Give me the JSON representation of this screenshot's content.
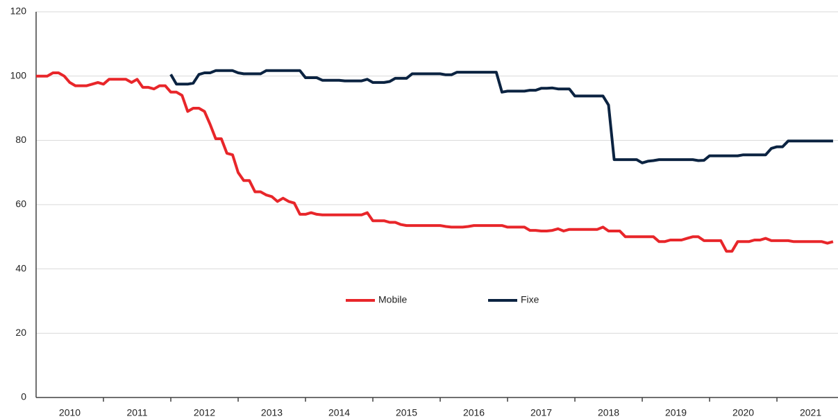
{
  "chart_data": {
    "type": "line",
    "x": [
      2010,
      2010.083,
      2010.167,
      2010.25,
      2010.333,
      2010.417,
      2010.5,
      2010.583,
      2010.667,
      2010.75,
      2010.833,
      2010.917,
      2011,
      2011.083,
      2011.167,
      2011.25,
      2011.333,
      2011.417,
      2011.5,
      2011.583,
      2011.667,
      2011.75,
      2011.833,
      2011.917,
      2012,
      2012.083,
      2012.167,
      2012.25,
      2012.333,
      2012.417,
      2012.5,
      2012.583,
      2012.667,
      2012.75,
      2012.833,
      2012.917,
      2013,
      2013.083,
      2013.167,
      2013.25,
      2013.333,
      2013.417,
      2013.5,
      2013.583,
      2013.667,
      2013.75,
      2013.833,
      2013.917,
      2014,
      2014.083,
      2014.167,
      2014.25,
      2014.333,
      2014.417,
      2014.5,
      2014.583,
      2014.667,
      2014.75,
      2014.833,
      2014.917,
      2015,
      2015.083,
      2015.167,
      2015.25,
      2015.333,
      2015.417,
      2015.5,
      2015.583,
      2015.667,
      2015.75,
      2015.833,
      2015.917,
      2016,
      2016.083,
      2016.167,
      2016.25,
      2016.333,
      2016.417,
      2016.5,
      2016.583,
      2016.667,
      2016.75,
      2016.833,
      2016.917,
      2017,
      2017.083,
      2017.167,
      2017.25,
      2017.333,
      2017.417,
      2017.5,
      2017.583,
      2017.667,
      2017.75,
      2017.833,
      2017.917,
      2018,
      2018.083,
      2018.167,
      2018.25,
      2018.333,
      2018.417,
      2018.5,
      2018.583,
      2018.667,
      2018.75,
      2018.833,
      2018.917,
      2019,
      2019.083,
      2019.167,
      2019.25,
      2019.333,
      2019.417,
      2019.5,
      2019.583,
      2019.667,
      2019.75,
      2019.833,
      2019.917,
      2020,
      2020.083,
      2020.167,
      2020.25,
      2020.333,
      2020.417,
      2020.5,
      2020.583,
      2020.667,
      2020.75,
      2020.833,
      2020.917,
      2021,
      2021.083,
      2021.167,
      2021.25,
      2021.333,
      2021.417,
      2021.5,
      2021.583,
      2021.667,
      2021.75,
      2021.833
    ],
    "series": [
      {
        "name": "Mobile",
        "color": "#e8262a",
        "values": [
          100,
          100,
          100,
          101,
          101,
          100,
          98,
          97,
          97,
          97,
          97.5,
          98,
          97.5,
          99,
          99,
          99,
          99,
          98,
          99,
          96.5,
          96.5,
          96,
          97,
          97,
          95,
          95,
          94,
          89,
          90,
          90,
          89,
          85,
          80.5,
          80.5,
          76,
          75.5,
          70,
          67.5,
          67.5,
          64,
          64,
          63,
          62.5,
          61,
          62,
          61,
          60.5,
          57,
          57,
          57.5,
          57,
          56.8,
          56.8,
          56.8,
          56.8,
          56.8,
          56.8,
          56.8,
          56.8,
          57.5,
          55,
          55,
          55,
          54.5,
          54.5,
          53.8,
          53.5,
          53.5,
          53.5,
          53.5,
          53.5,
          53.5,
          53.5,
          53.2,
          53,
          53,
          53,
          53.2,
          53.5,
          53.5,
          53.5,
          53.5,
          53.5,
          53.5,
          53,
          53,
          53,
          53,
          52,
          52,
          51.8,
          51.8,
          52,
          52.5,
          51.8,
          52.3,
          52.3,
          52.3,
          52.3,
          52.3,
          52.3,
          53,
          51.8,
          51.8,
          51.8,
          50,
          50,
          50,
          50,
          50,
          50,
          48.5,
          48.5,
          49,
          49,
          49,
          49.5,
          50,
          50,
          48.8,
          48.8,
          48.8,
          48.8,
          45.5,
          45.5,
          48.5,
          48.5,
          48.5,
          49,
          49,
          49.5,
          48.8,
          48.8,
          48.8,
          48.8,
          48.5,
          48.5,
          48.5,
          48.5,
          48.5,
          48.5,
          48,
          48.5
        ]
      },
      {
        "name": "Fixe",
        "color": "#0b2341",
        "values": [
          null,
          null,
          null,
          null,
          null,
          null,
          null,
          null,
          null,
          null,
          null,
          null,
          null,
          null,
          null,
          null,
          null,
          null,
          null,
          null,
          null,
          null,
          null,
          null,
          100.5,
          97.5,
          97.5,
          97.5,
          97.8,
          100.5,
          101,
          101,
          101.7,
          101.7,
          101.7,
          101.7,
          101,
          100.7,
          100.7,
          100.7,
          100.7,
          101.7,
          101.7,
          101.7,
          101.7,
          101.7,
          101.7,
          101.7,
          99.5,
          99.5,
          99.5,
          98.7,
          98.7,
          98.7,
          98.7,
          98.5,
          98.5,
          98.5,
          98.5,
          99,
          98,
          98,
          98,
          98.3,
          99.3,
          99.3,
          99.3,
          100.7,
          100.7,
          100.7,
          100.7,
          100.7,
          100.7,
          100.4,
          100.4,
          101.2,
          101.2,
          101.2,
          101.2,
          101.2,
          101.2,
          101.2,
          101.2,
          95,
          95.3,
          95.3,
          95.3,
          95.3,
          95.6,
          95.6,
          96.2,
          96.2,
          96.3,
          96,
          96,
          96,
          93.8,
          93.8,
          93.8,
          93.8,
          93.8,
          93.8,
          91,
          74,
          74,
          74,
          74,
          74,
          73,
          73.5,
          73.7,
          74,
          74,
          74,
          74,
          74,
          74,
          74,
          73.7,
          73.8,
          75.2,
          75.2,
          75.2,
          75.2,
          75.2,
          75.2,
          75.5,
          75.5,
          75.5,
          75.5,
          75.5,
          77.5,
          78,
          78,
          79.8,
          79.8,
          79.8,
          79.8,
          79.8,
          79.8,
          79.8,
          79.8,
          79.8
        ]
      }
    ],
    "xlim": [
      2010,
      2021.917
    ],
    "xticks": [
      {
        "value": 2010.5,
        "label": "2010"
      },
      {
        "value": 2011.5,
        "label": "2011"
      },
      {
        "value": 2012.5,
        "label": "2012"
      },
      {
        "value": 2013.5,
        "label": "2013"
      },
      {
        "value": 2014.5,
        "label": "2014"
      },
      {
        "value": 2015.5,
        "label": "2015"
      },
      {
        "value": 2016.5,
        "label": "2016"
      },
      {
        "value": 2017.5,
        "label": "2017"
      },
      {
        "value": 2018.5,
        "label": "2018"
      },
      {
        "value": 2019.5,
        "label": "2019"
      },
      {
        "value": 2020.5,
        "label": "2020"
      },
      {
        "value": 2021.5,
        "label": "2021"
      }
    ],
    "ylim": [
      0,
      120
    ],
    "yticks": [
      0,
      20,
      40,
      60,
      80,
      100,
      120
    ],
    "grid": true,
    "legend": "center"
  }
}
